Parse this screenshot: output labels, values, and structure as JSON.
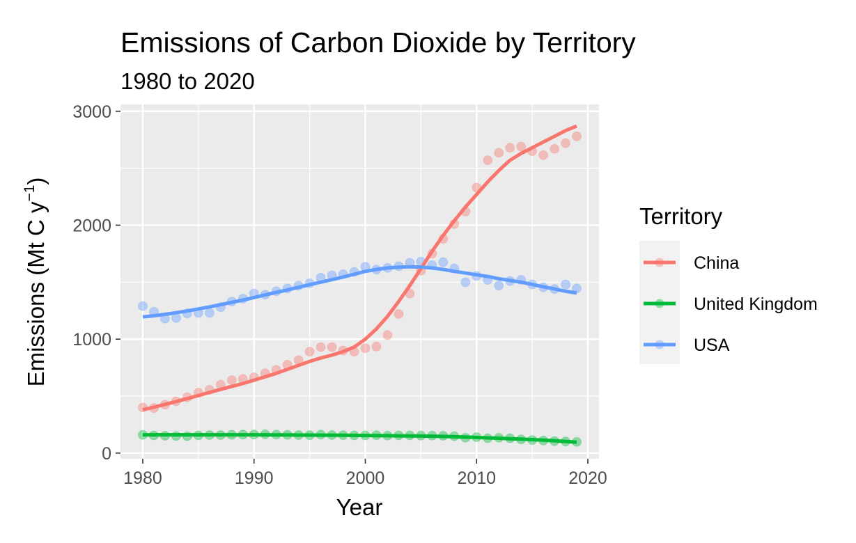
{
  "chart_data": {
    "type": "scatter",
    "title": "Emissions of Carbon Dioxide by Territory",
    "subtitle": "1980 to 2020",
    "xlabel": "Year",
    "ylabel": {
      "prefix": "Emissions (Mt C y",
      "superscript": "−1",
      "suffix": ")"
    },
    "xlim": [
      1978,
      2021
    ],
    "ylim": [
      -50,
      3060
    ],
    "x_ticks": [
      1980,
      1990,
      2000,
      2010,
      2020
    ],
    "y_ticks": [
      0,
      1000,
      2000,
      3000
    ],
    "grid": true,
    "legend": {
      "title": "Territory",
      "position": "right"
    },
    "x": [
      1980,
      1981,
      1982,
      1983,
      1984,
      1985,
      1986,
      1987,
      1988,
      1989,
      1990,
      1991,
      1992,
      1993,
      1994,
      1995,
      1996,
      1997,
      1998,
      1999,
      2000,
      2001,
      2002,
      2003,
      2004,
      2005,
      2006,
      2007,
      2008,
      2009,
      2010,
      2011,
      2012,
      2013,
      2014,
      2015,
      2016,
      2017,
      2018,
      2019
    ],
    "series": [
      {
        "name": "China",
        "color": "#F8766D",
        "points": [
          400,
          395,
          425,
          455,
          490,
          530,
          555,
          600,
          640,
          650,
          665,
          700,
          730,
          775,
          815,
          890,
          930,
          930,
          900,
          890,
          920,
          935,
          1035,
          1220,
          1400,
          1600,
          1750,
          1880,
          2010,
          2120,
          2330,
          2570,
          2635,
          2680,
          2690,
          2650,
          2615,
          2670,
          2720,
          2780
        ],
        "smooth": [
          380,
          403,
          427,
          452,
          478,
          505,
          532,
          559,
          585,
          610,
          640,
          670,
          700,
          735,
          770,
          805,
          835,
          860,
          890,
          930,
          1000,
          1090,
          1200,
          1330,
          1470,
          1620,
          1770,
          1910,
          2040,
          2160,
          2270,
          2380,
          2480,
          2570,
          2630,
          2680,
          2730,
          2780,
          2830,
          2870
        ]
      },
      {
        "name": "United Kingdom",
        "color": "#00BA38",
        "points": [
          160,
          155,
          152,
          150,
          148,
          155,
          158,
          158,
          160,
          162,
          163,
          165,
          162,
          160,
          158,
          157,
          162,
          158,
          157,
          155,
          155,
          157,
          153,
          155,
          155,
          153,
          153,
          152,
          148,
          135,
          140,
          130,
          135,
          130,
          120,
          115,
          110,
          105,
          102,
          98
        ],
        "smooth": [
          160,
          160,
          160,
          160,
          160,
          160,
          160,
          160,
          160,
          160,
          160,
          160,
          159,
          159,
          158,
          158,
          157,
          157,
          156,
          155,
          154,
          153,
          152,
          151,
          150,
          149,
          148,
          146,
          143,
          140,
          137,
          133,
          130,
          126,
          122,
          118,
          113,
          108,
          102,
          95
        ]
      },
      {
        "name": "USA",
        "color": "#619CFF",
        "points": [
          1290,
          1240,
          1180,
          1185,
          1225,
          1230,
          1230,
          1280,
          1330,
          1355,
          1400,
          1390,
          1420,
          1445,
          1470,
          1490,
          1540,
          1560,
          1570,
          1590,
          1635,
          1610,
          1625,
          1640,
          1670,
          1680,
          1650,
          1675,
          1620,
          1500,
          1555,
          1520,
          1470,
          1510,
          1520,
          1480,
          1455,
          1440,
          1480,
          1445
        ],
        "smooth": [
          1195,
          1205,
          1218,
          1232,
          1248,
          1265,
          1283,
          1303,
          1323,
          1343,
          1365,
          1388,
          1410,
          1432,
          1455,
          1478,
          1500,
          1522,
          1545,
          1570,
          1595,
          1612,
          1625,
          1632,
          1635,
          1633,
          1625,
          1612,
          1595,
          1580,
          1565,
          1550,
          1530,
          1515,
          1500,
          1480,
          1460,
          1440,
          1420,
          1405
        ]
      }
    ]
  },
  "colors": {
    "panel_background": "#EBEBEB",
    "grid_major": "#FFFFFF",
    "axis_text": "#4D4D4D"
  }
}
